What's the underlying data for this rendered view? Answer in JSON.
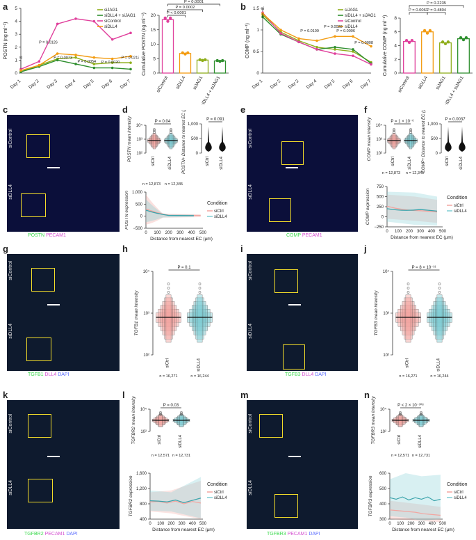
{
  "panels": {
    "a": "a",
    "b": "b",
    "c": "c",
    "d": "d",
    "e": "e",
    "f": "f",
    "g": "g",
    "h": "h",
    "i": "i",
    "j": "j",
    "k": "k",
    "l": "l",
    "m": "m",
    "n": "n"
  },
  "colors": {
    "siJAG1": "#8fae1b",
    "siDLL4_siJAG1": "#2f8f2f",
    "siControl": "#e0409c",
    "siDLL4": "#f39c12",
    "siCtrl_violin": "#f2a5a0",
    "siDLL4_violin": "#7fcdd3"
  },
  "micro_labels": {
    "c": {
      "rows": [
        "siControl",
        "siDLL4"
      ],
      "caption": [
        "POSTN",
        "PECAM1"
      ]
    },
    "e": {
      "rows": [
        "siControl",
        "siDLL4"
      ],
      "caption": [
        "COMP",
        "PECAM1"
      ]
    },
    "g": {
      "rows": [
        "siControl",
        "siDLL4"
      ],
      "caption": [
        "TGFB1",
        "DLL4",
        "DAPI"
      ]
    },
    "i": {
      "rows": [
        "siControl",
        "siDLL4"
      ],
      "caption": [
        "TGFB3",
        "DLL4",
        "DAPI"
      ]
    },
    "k": {
      "rows": [
        "siControl",
        "siDLL4"
      ],
      "caption": [
        "TGFBR2",
        "PECAM1",
        "DAPI"
      ]
    },
    "m": {
      "rows": [
        "siControl",
        "siDLL4"
      ],
      "caption": [
        "TGFBR3",
        "PECAM1",
        "DAPI"
      ]
    }
  },
  "chart_data": [
    {
      "id": "a_line",
      "type": "line",
      "ylabel": "POSTN (ng ml⁻¹)",
      "categories": [
        "Day 1",
        "Day 2",
        "Day 3",
        "Day 4",
        "Day 5",
        "Day 6",
        "Day 7"
      ],
      "ylim": [
        0,
        5
      ],
      "yticks": [
        0,
        1,
        2,
        3,
        4,
        5
      ],
      "legend": [
        "siJAG1",
        "siDLL4 + siJAG1",
        "siControl",
        "siDLL4"
      ],
      "series": [
        {
          "name": "siJAG1",
          "values": [
            0.1,
            0.6,
            1.1,
            1.2,
            0.7,
            0.8,
            0.8
          ]
        },
        {
          "name": "siDLL4 + siJAG1",
          "values": [
            0.1,
            0.5,
            1.0,
            0.7,
            0.4,
            0.4,
            0.3
          ]
        },
        {
          "name": "siControl",
          "values": [
            0.3,
            0.9,
            3.8,
            4.2,
            4.0,
            2.6,
            3.1
          ]
        },
        {
          "name": "siDLL4",
          "values": [
            0.2,
            0.6,
            1.5,
            1.4,
            1.2,
            1.1,
            1.3
          ]
        }
      ],
      "annotations": [
        "si",
        "P = 0.0126",
        "P = 0.0073",
        "P = 0.0054",
        "P = 0.0020",
        "P = 0.0213"
      ]
    },
    {
      "id": "a_bar",
      "type": "bar",
      "ylabel": "Cumulative POSTN (ng ml⁻¹)",
      "categories": [
        "siControl",
        "siDLL4",
        "siJAG1",
        "siDLL4 + siJAG1"
      ],
      "values": [
        18.5,
        6.8,
        4.5,
        4.2
      ],
      "ylim": [
        0,
        20
      ],
      "yticks": [
        0,
        5,
        10,
        15,
        20
      ],
      "annotations": [
        "P = 0.0001",
        "P = 0.0002",
        "P < 0.0001"
      ]
    },
    {
      "id": "b_line",
      "type": "line",
      "ylabel": "COMP (ng ml⁻¹)",
      "categories": [
        "Day 1",
        "Day 2",
        "Day 3",
        "Day 4",
        "Day 5",
        "Day 6",
        "Day 7"
      ],
      "ylim": [
        0,
        1.5
      ],
      "yticks": [
        0,
        0.5,
        1.0,
        1.5
      ],
      "legend": [
        "siJAG1",
        "siDLL4 + siJAG1",
        "siControl",
        "siDLL4"
      ],
      "series": [
        {
          "name": "siJAG1",
          "values": [
            1.35,
            0.95,
            0.75,
            0.6,
            0.55,
            0.5,
            0.25
          ]
        },
        {
          "name": "siDLL4 + siJAG1",
          "values": [
            1.3,
            0.9,
            0.72,
            0.55,
            0.6,
            0.55,
            0.22
          ]
        },
        {
          "name": "siControl",
          "values": [
            1.4,
            0.92,
            0.72,
            0.55,
            0.45,
            0.4,
            0.2
          ]
        },
        {
          "name": "siDLL4",
          "values": [
            1.38,
            1.0,
            0.8,
            0.75,
            0.85,
            0.85,
            0.62
          ]
        }
      ],
      "annotations": [
        "si",
        "P = 0.0109",
        "P = 0.0028",
        "P = 0.0006",
        "P = 0.0008"
      ]
    },
    {
      "id": "b_bar",
      "type": "bar",
      "ylabel": "Cumulative COMP (ng ml⁻¹)",
      "categories": [
        "siControl",
        "siDLL4",
        "siJAG1",
        "siDLL4 + siJAG1"
      ],
      "values": [
        4.6,
        6.0,
        4.4,
        5.0
      ],
      "ylim": [
        0,
        8
      ],
      "yticks": [
        0,
        2,
        4,
        6,
        8
      ],
      "annotations": [
        "P = 0.2235",
        "P = 0.0061",
        "P = 0.4804"
      ]
    },
    {
      "id": "d_box",
      "type": "box",
      "ylabel": "POSTN mean intensity",
      "categories": [
        "siCtrl",
        "siDLL4"
      ],
      "annotations": [
        "P = 0.04",
        "n = 12,873",
        "n = 12,345"
      ],
      "ytick_labels": [
        "10²",
        "10³",
        "10⁴"
      ]
    },
    {
      "id": "d_violin",
      "type": "violin",
      "ylabel": "POSTN+ Distance to nearest EC (µm)",
      "categories": [
        "siCtrl",
        "siDLL4"
      ],
      "annotations": [
        "P = 0.091"
      ],
      "ytick_labels": [
        "0",
        "500",
        "1,000"
      ]
    },
    {
      "id": "d_line",
      "type": "line",
      "ylabel": "POSTN expression",
      "xlabel": "Distance from nearest EC (µm)",
      "legend_title": "Condition",
      "legend": [
        "siCtrl",
        "siDLL4"
      ],
      "xticks": [
        0,
        100,
        200,
        300,
        400,
        500
      ],
      "yticks": [
        -500,
        0,
        500,
        1000
      ],
      "ytick_labels": [
        "−500",
        "0",
        "500",
        "1,000"
      ]
    },
    {
      "id": "f_box",
      "type": "box",
      "ylabel": "COMP mean intensity",
      "categories": [
        "siCtrl",
        "siDLL4"
      ],
      "annotations": [
        "P = 1 × 10⁻⁶",
        "n = 12,873",
        "n = 12,345"
      ],
      "ytick_labels": [
        "10²",
        "10³",
        "10⁴"
      ]
    },
    {
      "id": "f_violin",
      "type": "violin",
      "ylabel": "COMP+ Distance to nearest EC (µm)",
      "categories": [
        "siCtrl",
        "siDLL4"
      ],
      "annotations": [
        "P = 0.0037"
      ],
      "ytick_labels": [
        "0",
        "500",
        "1,000"
      ]
    },
    {
      "id": "f_line",
      "type": "line",
      "ylabel": "COMP expression",
      "xlabel": "Distance from nearest EC (µm)",
      "legend_title": "Condition",
      "legend": [
        "siCtrl",
        "siDLL4"
      ],
      "xticks": [
        0,
        100,
        200,
        300,
        400,
        500
      ],
      "yticks": [
        -250,
        0,
        250,
        500,
        750
      ],
      "ytick_labels": [
        "−250",
        "0",
        "250",
        "500",
        "750"
      ]
    },
    {
      "id": "h_box",
      "type": "box",
      "ylabel": "TGFB1 mean intensity",
      "categories": [
        "siCtrl",
        "siDLL4"
      ],
      "annotations": [
        "P = 0.1",
        "n = 16,271",
        "n = 16,244"
      ],
      "ytick_labels": [
        "10²",
        "10³",
        "10⁴"
      ]
    },
    {
      "id": "j_box",
      "type": "box",
      "ylabel": "TGFB3 mean intensity",
      "categories": [
        "siCtrl",
        "siDLL4"
      ],
      "annotations": [
        "P = 8 × 10⁻³¹",
        "n = 16,271",
        "n = 16,244"
      ],
      "ytick_labels": [
        "10²",
        "10³",
        "10⁴"
      ]
    },
    {
      "id": "l_box",
      "type": "box",
      "ylabel": "TGFBR2 mean intensity",
      "categories": [
        "siCtrl",
        "siDLL4"
      ],
      "annotations": [
        "P = 0.03",
        "n = 12,571",
        "n = 12,731"
      ],
      "ytick_labels": [
        "10²",
        "10⁴"
      ]
    },
    {
      "id": "l_line",
      "type": "line",
      "ylabel": "TGFBR2 expression",
      "xlabel": "Distance from nearest EC (µm)",
      "legend_title": "Condition",
      "legend": [
        "siCtrl",
        "siDLL4"
      ],
      "xticks": [
        0,
        100,
        200,
        300,
        400,
        500
      ],
      "yticks": [
        400,
        800,
        1200,
        1600
      ],
      "ytick_labels": [
        "400",
        "800",
        "1,200",
        "1,600"
      ]
    },
    {
      "id": "n_box",
      "type": "box",
      "ylabel": "TGFBR3 mean intensity",
      "categories": [
        "siCtrl",
        "siDLL4"
      ],
      "annotations": [
        "P < 2 × 10⁻³⁰⁸",
        "n = 12,571",
        "n = 12,731"
      ],
      "ytick_labels": [
        "10²",
        "10⁴"
      ]
    },
    {
      "id": "n_line",
      "type": "line",
      "ylabel": "TGFBR3 expression",
      "xlabel": "Distance from nearest EC (µm)",
      "legend_title": "Condition",
      "legend": [
        "siCtrl",
        "siDLL4"
      ],
      "xticks": [
        0,
        100,
        200,
        300,
        400,
        500
      ],
      "yticks": [
        300,
        400,
        500,
        600
      ],
      "ytick_labels": [
        "300",
        "400",
        "500",
        "600"
      ]
    }
  ]
}
